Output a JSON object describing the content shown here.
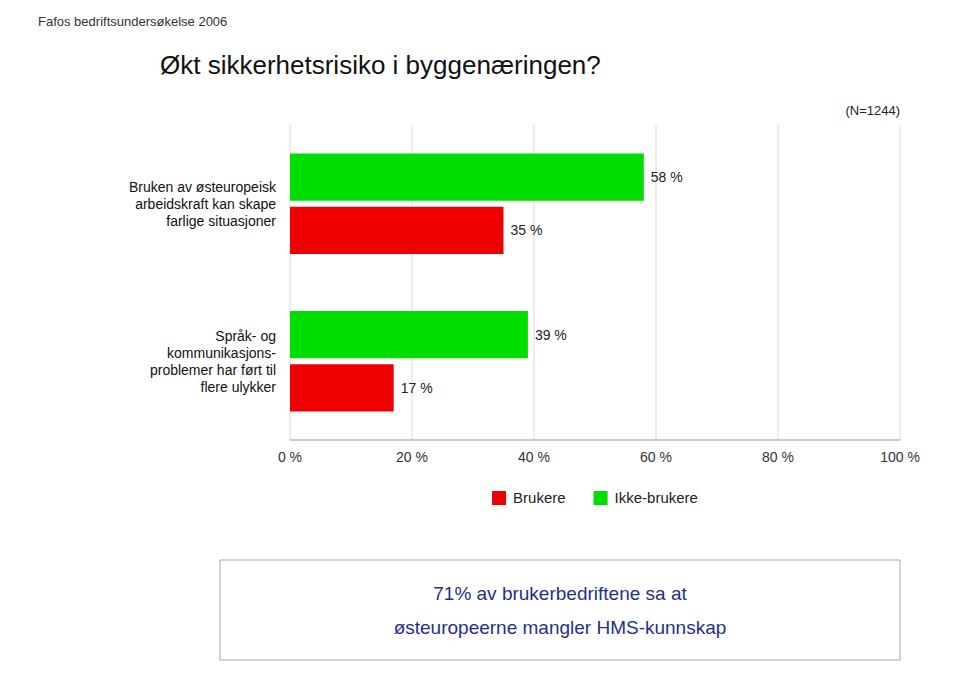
{
  "chart_data": {
    "type": "bar",
    "orientation": "horizontal",
    "title": "Økt sikkerhetsrisiko i byggenæringen?",
    "subtitle": "Fafos bedriftsundersøkelse 2006",
    "annotations": [
      "(N=1244)",
      "71% av brukerbedriftene sa at",
      "østeuropeerne mangler HMS-kunnskap"
    ],
    "categories": [
      "Bruken av østeuropeisk\narbeidskraft kan skape\nfarlige situasjoner",
      "Språk- og\nkommunikasjons-\nproblemer har ført til\nflere ulykker"
    ],
    "series": [
      {
        "name": "Brukere",
        "color": "#EE0000",
        "values": [
          35,
          17
        ],
        "value_labels": [
          "35 %",
          "17 %"
        ]
      },
      {
        "name": "Ikke-brukere",
        "color": "#00DD00",
        "values": [
          58,
          39
        ],
        "value_labels": [
          "58 %",
          "39 %"
        ]
      }
    ],
    "xlim": [
      0,
      100
    ],
    "xticks": [
      {
        "value": 0,
        "label": "0 %"
      },
      {
        "value": 20,
        "label": "20 %"
      },
      {
        "value": 40,
        "label": "40 %"
      },
      {
        "value": 60,
        "label": "60 %"
      },
      {
        "value": 80,
        "label": "80 %"
      },
      {
        "value": 100,
        "label": "100 %"
      }
    ],
    "grid": true,
    "data_labels": true,
    "legend": "bottom"
  }
}
